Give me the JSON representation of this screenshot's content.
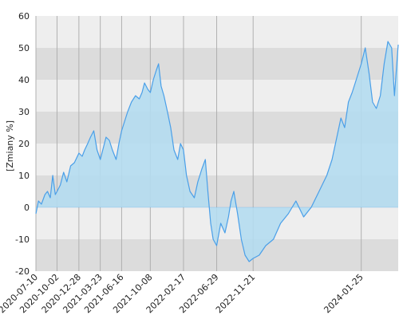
{
  "chart_data": {
    "type": "area",
    "title": "",
    "xlabel": "",
    "ylabel": "[Zmiany %]",
    "ylim": [
      -20,
      60
    ],
    "xlim": [
      "2020-07-10",
      "2024-06-20"
    ],
    "y_ticks": [
      -20,
      -10,
      0,
      10,
      20,
      30,
      40,
      50,
      60
    ],
    "x_ticks": [
      "2020-07-10",
      "2020-10-02",
      "2020-12-28",
      "2021-03-23",
      "2021-06-16",
      "2021-10-08",
      "2022-02-17",
      "2022-06-29",
      "2022-11-21",
      "2024-01-25"
    ],
    "grid": true,
    "legend": "none",
    "colors": {
      "line": "#4a9fe8",
      "fill": "#b4dcef",
      "band_dark": "#dcdcdc",
      "band_light": "#eeeeee",
      "grid": "#b0b0b0"
    },
    "series": [
      {
        "x": [
          "2020-07-10",
          "2020-07-20",
          "2020-08-01",
          "2020-08-15",
          "2020-08-25",
          "2020-09-05",
          "2020-09-15",
          "2020-09-25",
          "2020-10-02",
          "2020-10-15",
          "2020-10-28",
          "2020-11-10",
          "2020-11-25",
          "2020-12-10",
          "2020-12-28",
          "2021-01-10",
          "2021-01-20",
          "2021-02-01",
          "2021-02-12",
          "2021-02-25",
          "2021-03-10",
          "2021-03-23",
          "2021-04-05",
          "2021-04-15",
          "2021-04-28",
          "2021-05-10",
          "2021-05-25",
          "2021-06-05",
          "2021-06-16",
          "2021-06-28",
          "2021-07-10",
          "2021-07-25",
          "2021-08-10",
          "2021-08-25",
          "2021-09-05",
          "2021-09-15",
          "2021-09-28",
          "2021-10-08",
          "2021-10-20",
          "2021-11-01",
          "2021-11-10",
          "2021-11-20",
          "2021-12-01",
          "2021-12-15",
          "2021-12-28",
          "2022-01-10",
          "2022-01-25",
          "2022-02-05",
          "2022-02-17",
          "2022-03-01",
          "2022-03-15",
          "2022-04-01",
          "2022-04-15",
          "2022-05-01",
          "2022-05-15",
          "2022-05-25",
          "2022-06-05",
          "2022-06-15",
          "2022-06-29",
          "2022-07-15",
          "2022-08-01",
          "2022-08-15",
          "2022-08-25",
          "2022-09-05",
          "2022-09-20",
          "2022-10-05",
          "2022-10-20",
          "2022-11-05",
          "2022-11-21",
          "2022-12-15",
          "2023-01-10",
          "2023-02-10",
          "2023-03-10",
          "2023-04-10",
          "2023-05-10",
          "2023-06-10",
          "2023-07-10",
          "2023-08-10",
          "2023-09-10",
          "2023-10-01",
          "2023-10-20",
          "2023-11-05",
          "2023-11-20",
          "2023-12-05",
          "2023-12-20",
          "2024-01-05",
          "2024-01-25",
          "2024-02-10",
          "2024-02-25",
          "2024-03-10",
          "2024-03-25",
          "2024-04-10",
          "2024-04-25",
          "2024-05-10",
          "2024-05-25",
          "2024-06-05",
          "2024-06-20"
        ],
        "y": [
          -2,
          2,
          1,
          4,
          5,
          3,
          10,
          4,
          5,
          7,
          11,
          8,
          13,
          14,
          17,
          16,
          18,
          20,
          22,
          24,
          18,
          15,
          19,
          22,
          21,
          18,
          15,
          20,
          24,
          27,
          30,
          33,
          35,
          34,
          36,
          39,
          37,
          36,
          40,
          43,
          45,
          38,
          35,
          30,
          25,
          18,
          15,
          20,
          18,
          10,
          5,
          3,
          8,
          12,
          15,
          5,
          -5,
          -10,
          -12,
          -5,
          -8,
          -3,
          2,
          5,
          -2,
          -10,
          -15,
          -17,
          -16,
          -15,
          -12,
          -10,
          -5,
          -2,
          2,
          -3,
          0,
          5,
          10,
          15,
          22,
          28,
          25,
          33,
          36,
          40,
          45,
          50,
          42,
          33,
          31,
          35,
          45,
          52,
          50,
          35,
          51
        ]
      }
    ]
  }
}
